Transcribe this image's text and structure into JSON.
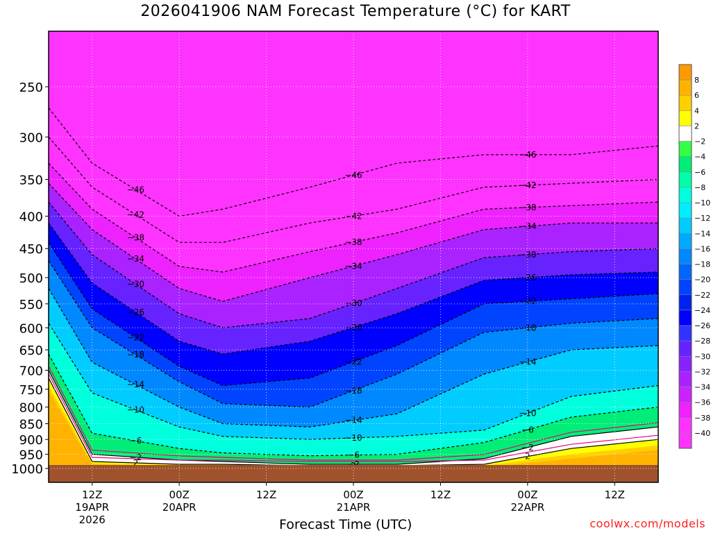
{
  "title": "2026041906 NAM Forecast Temperature (°C) for KART",
  "credit": "coolwx.com/models",
  "chart_data": {
    "type": "heatmap",
    "title": "2026041906 NAM Forecast Temperature (°C) for KART",
    "xlabel": "Forecast Time (UTC)",
    "ylabel": "",
    "x_ticks": [
      {
        "label": "12Z",
        "sub": [
          "19APR",
          "2026"
        ],
        "hour": 6
      },
      {
        "label": "00Z",
        "sub": [
          "20APR"
        ],
        "hour": 18
      },
      {
        "label": "12Z",
        "sub": [],
        "hour": 30
      },
      {
        "label": "00Z",
        "sub": [
          "21APR"
        ],
        "hour": 42
      },
      {
        "label": "12Z",
        "sub": [],
        "hour": 54
      },
      {
        "label": "00Z",
        "sub": [
          "22APR"
        ],
        "hour": 66
      },
      {
        "label": "12Z",
        "sub": [],
        "hour": 78
      }
    ],
    "xlim_hours": [
      0,
      84
    ],
    "y_ticks": [
      250,
      300,
      350,
      400,
      450,
      500,
      550,
      600,
      650,
      700,
      750,
      800,
      850,
      900,
      950,
      1000
    ],
    "ylim_hPa": [
      200,
      1025
    ],
    "ground_hPa": 1000,
    "colorbar_levels": [
      8,
      6,
      4,
      2,
      -2,
      -4,
      -6,
      -8,
      -10,
      -12,
      -14,
      -16,
      -18,
      -20,
      -22,
      -24,
      -26,
      -28,
      -30,
      -32,
      -34,
      -36,
      -38,
      -40
    ],
    "contour_labels_C": [
      -46,
      -42,
      -38,
      -34,
      -30,
      -26,
      -22,
      -18,
      -14,
      -10,
      -6,
      -2,
      2
    ],
    "isotherm_profiles": [
      {
        "temp": 2,
        "p": [
          720,
          975,
          985,
          985,
          990,
          990,
          985,
          930,
          900
        ]
      },
      {
        "temp": -2,
        "p": [
          700,
          950,
          970,
          975,
          985,
          985,
          965,
          890,
          860
        ]
      },
      {
        "temp": -6,
        "p": [
          660,
          880,
          930,
          945,
          955,
          950,
          910,
          830,
          800
        ]
      },
      {
        "temp": -10,
        "p": [
          590,
          760,
          860,
          890,
          900,
          890,
          870,
          770,
          740
        ]
      },
      {
        "temp": -14,
        "p": [
          520,
          680,
          800,
          850,
          860,
          820,
          710,
          650,
          640
        ]
      },
      {
        "temp": -18,
        "p": [
          470,
          600,
          730,
          790,
          800,
          710,
          610,
          590,
          580
        ]
      },
      {
        "temp": -22,
        "p": [
          440,
          560,
          690,
          740,
          720,
          640,
          550,
          540,
          530
        ]
      },
      {
        "temp": -26,
        "p": [
          410,
          510,
          630,
          660,
          630,
          570,
          505,
          495,
          490
        ]
      },
      {
        "temp": -30,
        "p": [
          380,
          460,
          570,
          600,
          580,
          520,
          465,
          455,
          450
        ]
      },
      {
        "temp": -34,
        "p": [
          355,
          420,
          520,
          545,
          500,
          460,
          420,
          410,
          410
        ]
      },
      {
        "temp": -38,
        "p": [
          330,
          390,
          480,
          490,
          455,
          425,
          390,
          385,
          380
        ]
      },
      {
        "temp": -42,
        "p": [
          300,
          360,
          440,
          440,
          410,
          390,
          360,
          355,
          350
        ]
      },
      {
        "temp": -46,
        "p": [
          270,
          330,
          400,
          390,
          360,
          330,
          320,
          320,
          310
        ]
      }
    ],
    "profile_hours": [
      0,
      6,
      18,
      24,
      36,
      48,
      60,
      72,
      84
    ]
  },
  "colors": {
    "ground": "#a0522d",
    "warm_8": "#ff9900",
    "warm_6": "#ffb300",
    "warm_4": "#ffd000",
    "warm_2": "#ffff00",
    "near_zero": "#ffffff",
    "contour_warm": "#e8007a",
    "credit": "#ff2020"
  }
}
